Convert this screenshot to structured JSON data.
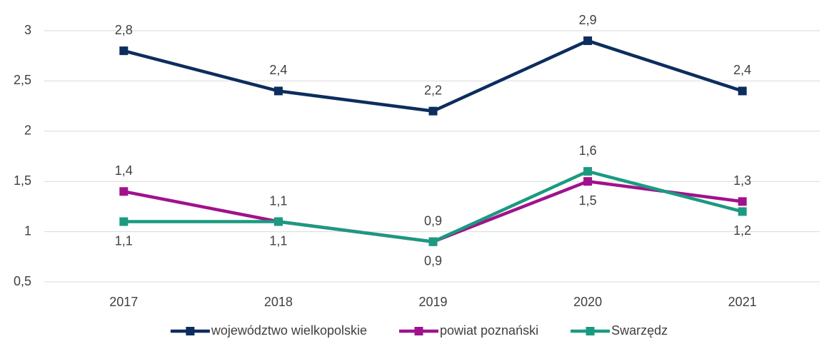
{
  "chart_data": {
    "type": "line",
    "categories": [
      "2017",
      "2018",
      "2019",
      "2020",
      "2021"
    ],
    "ylim": [
      0.5,
      3
    ],
    "yticks": [
      {
        "value": 0.5,
        "label": "0,5"
      },
      1,
      {
        "value": 1.5,
        "label": "1,5"
      },
      2,
      {
        "value": 2.5,
        "label": "2,5"
      },
      3
    ],
    "grid": true,
    "legend": "bottom",
    "series": [
      {
        "name": "województwo wielkopolskie",
        "color": "#0c2d5e",
        "values": [
          2.8,
          2.4,
          2.2,
          2.9,
          2.4
        ],
        "value_labels": [
          "2,8",
          "2,4",
          "2,2",
          "2,9",
          "2,4"
        ]
      },
      {
        "name": "powiat poznański",
        "color": "#a0128c",
        "values": [
          1.4,
          1.1,
          0.9,
          1.5,
          1.3
        ],
        "value_labels": [
          "1,4",
          "1,1",
          "0,9",
          "1,5",
          "1,3"
        ]
      },
      {
        "name": "Swarzędz",
        "color": "#1b9a80",
        "values": [
          1.1,
          1.1,
          0.9,
          1.6,
          1.2
        ],
        "value_labels": [
          "1,1",
          "1,1",
          "0,9",
          "1,6",
          "1,2"
        ]
      }
    ]
  }
}
